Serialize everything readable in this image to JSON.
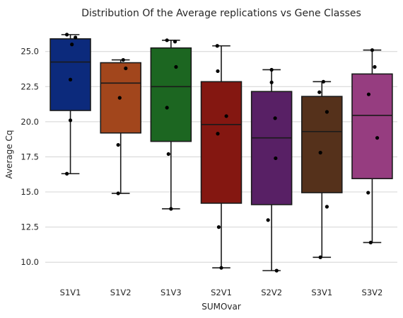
{
  "chart_data": {
    "type": "box",
    "title": "Distribution Of the  Average replications vs Gene Classes",
    "xlabel": "SUMOvar",
    "ylabel": "Average Cq",
    "ylim": [
      8.6,
      26.9
    ],
    "yticks": [
      10.0,
      12.5,
      15.0,
      17.5,
      20.0,
      22.5,
      25.0
    ],
    "ytick_labels": [
      "10.0",
      "12.5",
      "15.0",
      "17.5",
      "20.0",
      "22.5",
      "25.0"
    ],
    "grid": "horizontal",
    "categories": [
      "S1V1",
      "S1V2",
      "S1V3",
      "S2V1",
      "S2V2",
      "S3V1",
      "S3V2"
    ],
    "colors": [
      "#0c2a7c",
      "#a2461c",
      "#1c6621",
      "#841711",
      "#582065",
      "#55311b",
      "#963d80"
    ],
    "boxes": [
      {
        "q1": 20.8,
        "median": 24.25,
        "q3": 25.9,
        "whisker_low": 16.3,
        "whisker_high": 26.2
      },
      {
        "q1": 19.2,
        "median": 22.75,
        "q3": 24.2,
        "whisker_low": 14.9,
        "whisker_high": 24.4
      },
      {
        "q1": 18.6,
        "median": 22.5,
        "q3": 25.25,
        "whisker_low": 13.8,
        "whisker_high": 25.8
      },
      {
        "q1": 14.2,
        "median": 19.8,
        "q3": 22.85,
        "whisker_low": 9.6,
        "whisker_high": 25.4
      },
      {
        "q1": 14.1,
        "median": 18.85,
        "q3": 22.15,
        "whisker_low": 9.4,
        "whisker_high": 23.7
      },
      {
        "q1": 14.95,
        "median": 19.3,
        "q3": 21.8,
        "whisker_low": 10.35,
        "whisker_high": 22.85
      },
      {
        "q1": 15.95,
        "median": 20.45,
        "q3": 23.4,
        "whisker_low": 11.4,
        "whisker_high": 25.1
      }
    ],
    "points": [
      [
        [
          -0.07,
          26.2
        ],
        [
          0.1,
          26.0
        ],
        [
          0.03,
          25.5
        ],
        [
          0.0,
          23.0
        ],
        [
          0.0,
          20.1
        ],
        [
          -0.07,
          16.3
        ]
      ],
      [
        [
          0.05,
          24.4
        ],
        [
          0.1,
          23.8
        ],
        [
          -0.02,
          21.7
        ],
        [
          -0.05,
          18.35
        ],
        [
          -0.05,
          14.9
        ]
      ],
      [
        [
          -0.08,
          25.8
        ],
        [
          0.08,
          25.7
        ],
        [
          0.1,
          23.9
        ],
        [
          -0.08,
          21.0
        ],
        [
          -0.05,
          17.7
        ],
        [
          0.0,
          13.8
        ]
      ],
      [
        [
          -0.08,
          25.4
        ],
        [
          -0.07,
          23.6
        ],
        [
          0.1,
          20.4
        ],
        [
          -0.07,
          19.15
        ],
        [
          -0.05,
          12.5
        ],
        [
          0.0,
          9.6
        ]
      ],
      [
        [
          0.0,
          23.7
        ],
        [
          0.0,
          22.8
        ],
        [
          0.07,
          20.25
        ],
        [
          0.08,
          17.4
        ],
        [
          -0.07,
          13.0
        ],
        [
          0.1,
          9.4
        ]
      ],
      [
        [
          0.03,
          22.85
        ],
        [
          -0.05,
          22.1
        ],
        [
          0.1,
          20.7
        ],
        [
          -0.03,
          17.8
        ],
        [
          0.1,
          13.95
        ],
        [
          -0.03,
          10.35
        ]
      ],
      [
        [
          0.0,
          25.1
        ],
        [
          0.05,
          23.9
        ],
        [
          -0.07,
          21.95
        ],
        [
          0.1,
          18.85
        ],
        [
          -0.08,
          14.95
        ],
        [
          -0.03,
          11.4
        ]
      ]
    ]
  }
}
